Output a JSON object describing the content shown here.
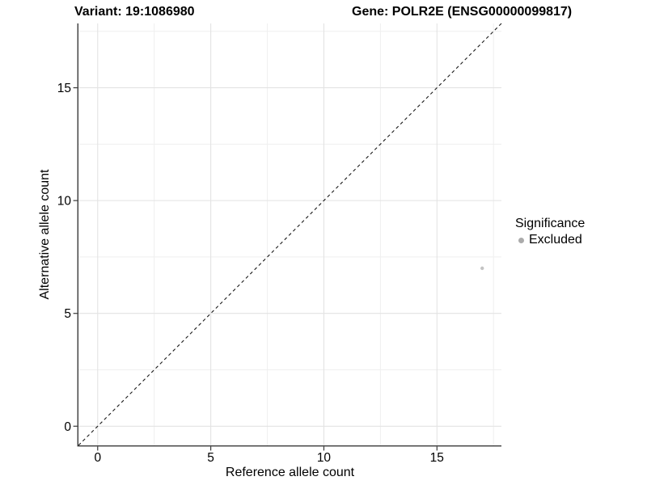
{
  "chart_data": {
    "type": "scatter",
    "titles": {
      "left": "Variant: 19:1086980",
      "right": "Gene: POLR2E (ENSG00000099817)"
    },
    "xlabel": "Reference allele count",
    "ylabel": "Alternative allele count",
    "xlim": [
      -0.85,
      17.85
    ],
    "ylim": [
      -0.85,
      17.85
    ],
    "xticks": [
      0,
      5,
      10,
      15
    ],
    "yticks": [
      0,
      5,
      10,
      15
    ],
    "minor_grid_step": 2.5,
    "grid": true,
    "points": [
      {
        "x": 17,
        "y": 7,
        "series": "Excluded"
      }
    ],
    "identity_line": {
      "slope": 1,
      "intercept": 0,
      "style": "dashed"
    },
    "legend": {
      "title": "Significance",
      "position": "right",
      "items": [
        {
          "label": "Excluded",
          "color": "#ababab"
        }
      ]
    },
    "colors": {
      "point": "#c3c3c3",
      "grid_major": "#e3e3e3",
      "grid_minor": "#efefef",
      "axis": "#3a3a3a",
      "abline": "#1a1a1a",
      "tick_text": "#000000"
    }
  }
}
